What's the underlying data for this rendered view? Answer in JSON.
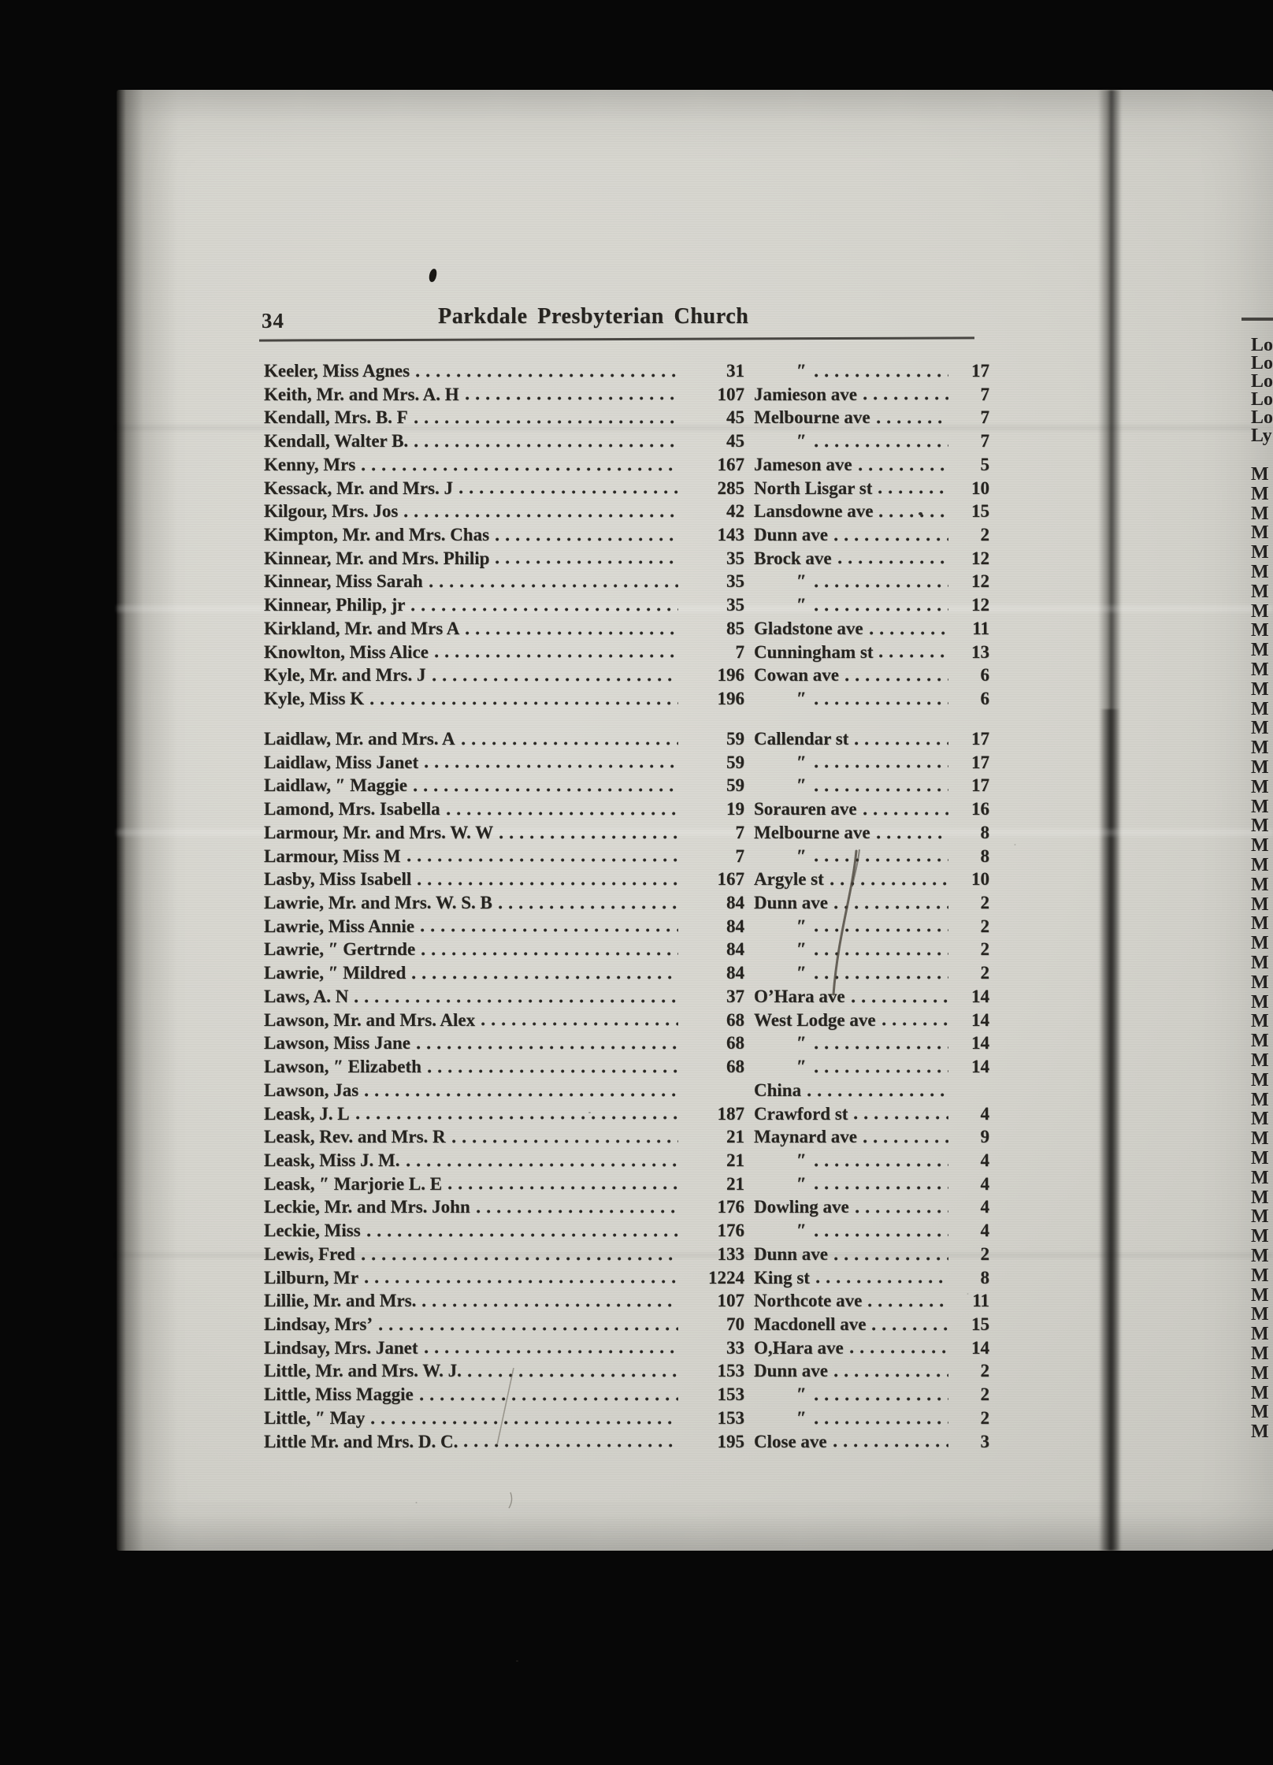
{
  "header": {
    "page_number": "34",
    "title": "Parkdale Presbyterian Church"
  },
  "directory": {
    "blocks": [
      {
        "letter": "K",
        "rows": [
          {
            "name": "Keeler, Miss Agnes",
            "number": "31",
            "street": "″",
            "district": "17"
          },
          {
            "name": "Keith, Mr. and Mrs. A. H",
            "number": "107",
            "street": "Jamieson ave",
            "district": "7"
          },
          {
            "name": "Kendall, Mrs. B. F",
            "number": "45",
            "street": "Melbourne ave",
            "district": "7"
          },
          {
            "name": "Kendall, Walter B.",
            "number": "45",
            "street": "″",
            "district": "7"
          },
          {
            "name": "Kenny, Mrs",
            "number": "167",
            "street": "Jameson ave",
            "district": "5"
          },
          {
            "name": "Kessack, Mr. and Mrs. J",
            "number": "285",
            "street": "North Lisgar st",
            "district": "10"
          },
          {
            "name": "Kilgour, Mrs. Jos",
            "number": "42",
            "street": "Lansdowne ave",
            "district": "15"
          },
          {
            "name": "Kimpton, Mr. and Mrs. Chas",
            "number": "143",
            "street": "Dunn ave",
            "district": "2"
          },
          {
            "name": "Kinnear, Mr. and Mrs. Philip",
            "number": "35",
            "street": "Brock ave",
            "district": "12"
          },
          {
            "name": "Kinnear, Miss Sarah",
            "number": "35",
            "street": "″",
            "district": "12"
          },
          {
            "name": "Kinnear, Philip, jr",
            "number": "35",
            "street": "″",
            "district": "12"
          },
          {
            "name": "Kirkland, Mr. and Mrs A",
            "number": "85",
            "street": "Gladstone ave",
            "district": "11"
          },
          {
            "name": "Knowlton, Miss Alice",
            "number": "7",
            "street": "Cunningham st",
            "district": "13"
          },
          {
            "name": "Kyle, Mr. and Mrs. J",
            "number": "196",
            "street": "Cowan ave",
            "district": "6"
          },
          {
            "name": "Kyle, Miss K",
            "number": "196",
            "street": "″",
            "district": "6"
          }
        ]
      },
      {
        "letter": "L",
        "rows": [
          {
            "name": "Laidlaw, Mr. and Mrs. A",
            "number": "59",
            "street": "Callendar st",
            "district": "17"
          },
          {
            "name": "Laidlaw, Miss Janet",
            "number": "59",
            "street": "″",
            "district": "17"
          },
          {
            "name": "Laidlaw, ″  Maggie",
            "number": "59",
            "street": "″",
            "district": "17"
          },
          {
            "name": "Lamond, Mrs. Isabella",
            "number": "19",
            "street": "Sorauren ave",
            "district": "16"
          },
          {
            "name": "Larmour, Mr. and Mrs. W. W",
            "number": "7",
            "street": "Melbourne ave",
            "district": "8"
          },
          {
            "name": "Larmour, Miss M",
            "number": "7",
            "street": "″",
            "district": "8"
          },
          {
            "name": "Lasby, Miss Isabell",
            "number": "167",
            "street": "Argyle st",
            "district": "10"
          },
          {
            "name": "Lawrie, Mr. and Mrs. W. S. B",
            "number": "84",
            "street": "Dunn ave",
            "district": "2"
          },
          {
            "name": "Lawrie, Miss Annie",
            "number": "84",
            "street": "″",
            "district": "2"
          },
          {
            "name": "Lawrie, ″  Gertrnde",
            "number": "84",
            "street": "″",
            "district": "2"
          },
          {
            "name": "Lawrie, ″  Mildred",
            "number": "84",
            "street": "″",
            "district": "2"
          },
          {
            "name": "Laws, A. N",
            "number": "37",
            "street": "O’Hara ave",
            "district": "14"
          },
          {
            "name": "Lawson, Mr. and Mrs. Alex",
            "number": "68",
            "street": "West Lodge ave",
            "district": "14"
          },
          {
            "name": "Lawson, Miss Jane",
            "number": "68",
            "street": "″",
            "district": "14"
          },
          {
            "name": "Lawson, ″  Elizabeth",
            "number": "68",
            "street": "″",
            "district": "14"
          },
          {
            "name": "Lawson, Jas",
            "number": "",
            "street": "China",
            "district": ""
          },
          {
            "name": "Leask, J. L",
            "number": "187",
            "street": "Crawford st",
            "district": "4"
          },
          {
            "name": "Leask, Rev. and Mrs. R",
            "number": "21",
            "street": "Maynard ave",
            "district": "9"
          },
          {
            "name": "Leask, Miss J. M.",
            "number": "21",
            "street": "″",
            "district": "4"
          },
          {
            "name": "Leask, ″  Marjorie L. E",
            "number": "21",
            "street": "″",
            "district": "4"
          },
          {
            "name": "Leckie, Mr. and Mrs. John",
            "number": "176",
            "street": "Dowling ave",
            "district": "4"
          },
          {
            "name": "Leckie, Miss",
            "number": "176",
            "street": "″",
            "district": "4"
          },
          {
            "name": "Lewis, Fred",
            "number": "133",
            "street": "Dunn ave",
            "district": "2"
          },
          {
            "name": "Lilburn, Mr",
            "number": "1224",
            "street": "King st",
            "district": "8"
          },
          {
            "name": "Lillie, Mr. and Mrs.",
            "number": "107",
            "street": "Northcote ave",
            "district": "11"
          },
          {
            "name": "Lindsay, Mrs’",
            "number": "70",
            "street": "Macdonell ave",
            "district": "15"
          },
          {
            "name": "Lindsay, Mrs. Janet",
            "number": "33",
            "street": "O,Hara ave",
            "district": "14"
          },
          {
            "name": "Little, Mr. and Mrs. W. J.",
            "number": "153",
            "street": "Dunn ave",
            "district": "2"
          },
          {
            "name": "Little, Miss Maggie",
            "number": "153",
            "street": "″",
            "district": "2"
          },
          {
            "name": "Little, ″  May",
            "number": "153",
            "street": "″",
            "district": "2"
          },
          {
            "name": "Little Mr. and Mrs. D. C.",
            "number": "195",
            "street": "Close ave",
            "district": "3"
          }
        ]
      }
    ]
  },
  "right_page_edge": {
    "letters": [
      "Lo",
      "Lo",
      "Lo",
      "Lo",
      "Lo",
      "Ly",
      "M",
      "M",
      "M",
      "M",
      "M",
      "M",
      "M",
      "M",
      "M",
      "M",
      "M",
      "M",
      "M",
      "M",
      "M",
      "M",
      "M",
      "M",
      "M",
      "M",
      "M",
      "M",
      "M",
      "M",
      "M",
      "M",
      "M",
      "M",
      "M",
      "M",
      "M",
      "M",
      "M",
      "M",
      "M",
      "M",
      "M",
      "M",
      "M",
      "M",
      "M",
      "M",
      "M",
      "M",
      "M",
      "M",
      "M",
      "M",
      "M",
      "M"
    ]
  }
}
